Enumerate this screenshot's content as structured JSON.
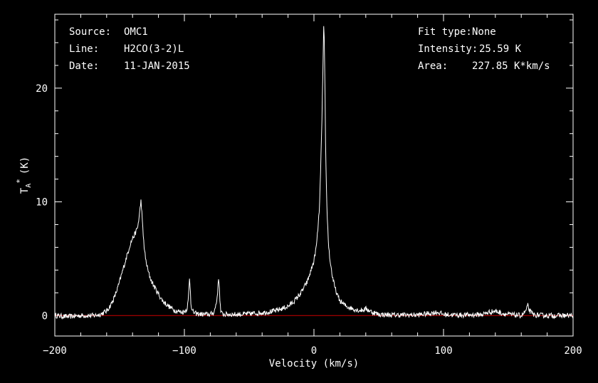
{
  "info_left": {
    "source_label": "Source:",
    "source_value": "OMC1",
    "line_label": "Line:",
    "line_value": "H2CO(3-2)L",
    "date_label": "Date:",
    "date_value": "11-JAN-2015"
  },
  "info_right": {
    "fit_label": "Fit type:",
    "fit_value": "None",
    "intensity_label": "Intensity:",
    "intensity_value": "25.59 K",
    "area_label": "Area:",
    "area_value": "227.85 K*km/s"
  },
  "colors": {
    "background": "#000000",
    "spectrum": "#ffffff",
    "baseline": "#cc0000",
    "frame": "#ffffff"
  },
  "chart_data": {
    "type": "line",
    "title": "",
    "xlabel": "Velocity (km/s)",
    "ylabel": "T",
    "ylabel_sub": "A",
    "ylabel_sup": "*",
    "ylabel_unit": "(K)",
    "xlim": [
      -200,
      200
    ],
    "ylim": [
      -1.8,
      26.5
    ],
    "xticks": [
      -200,
      -100,
      0,
      100,
      200
    ],
    "yticks": [
      0,
      10,
      20
    ],
    "baseline": 0,
    "grid": false,
    "series": [
      {
        "x": [
          -200,
          -190,
          -180,
          -170,
          -165,
          -160,
          -157,
          -154,
          -151,
          -148,
          -145,
          -142,
          -140,
          -138,
          -136,
          -135,
          -134,
          -133.5,
          -133,
          -132,
          -131,
          -130,
          -128,
          -126,
          -124,
          -122,
          -120,
          -118,
          -116,
          -114,
          -112,
          -110,
          -108,
          -106,
          -104,
          -102,
          -100,
          -98,
          -97,
          -96.5,
          -96,
          -95.5,
          -95,
          -94,
          -92,
          -90,
          -85,
          -80,
          -77,
          -75,
          -74,
          -73.5,
          -73,
          -72.5,
          -72,
          -71,
          -69,
          -65,
          -60,
          -50,
          -40,
          -30,
          -20,
          -15,
          -10,
          -5,
          0,
          2,
          4,
          5,
          6,
          7,
          7.5,
          8,
          8.5,
          9,
          10,
          11,
          12,
          14,
          16,
          18,
          20,
          25,
          30,
          35,
          38,
          40,
          45,
          50,
          60,
          70,
          80,
          90,
          95,
          100,
          110,
          120,
          130,
          135,
          140,
          145,
          150,
          160,
          162,
          164,
          165,
          166,
          168,
          170,
          180,
          190,
          200
        ],
        "y": [
          0,
          -0.1,
          0,
          0,
          0.1,
          0.4,
          0.9,
          1.6,
          2.6,
          3.8,
          5.0,
          6.2,
          6.8,
          7.2,
          7.8,
          8.6,
          9.6,
          10.1,
          9.4,
          7.4,
          6.0,
          5.0,
          3.9,
          3.2,
          2.7,
          2.3,
          1.9,
          1.5,
          1.2,
          1.0,
          0.8,
          0.65,
          0.5,
          0.4,
          0.35,
          0.3,
          0.35,
          0.6,
          1.3,
          2.4,
          3.3,
          2.5,
          1.2,
          0.4,
          0.2,
          0.15,
          0.1,
          0.1,
          0.3,
          1.3,
          2.6,
          3.4,
          2.5,
          1.2,
          0.4,
          0.15,
          0.1,
          0.1,
          0.1,
          0.15,
          0.25,
          0.4,
          0.8,
          1.3,
          2.0,
          3.0,
          4.8,
          6.2,
          9.0,
          12.0,
          16.5,
          22.0,
          25.5,
          24.0,
          20.0,
          14.5,
          9.5,
          6.8,
          5.2,
          3.6,
          2.5,
          1.8,
          1.3,
          0.8,
          0.6,
          0.45,
          0.5,
          0.6,
          0.3,
          0.1,
          0.05,
          0.05,
          0.05,
          0.2,
          0.3,
          0.1,
          0.05,
          0.05,
          0.1,
          0.3,
          0.4,
          0.2,
          0.1,
          0,
          0.2,
          0.5,
          0.9,
          0.5,
          0.2,
          0.05,
          0,
          0,
          0
        ]
      }
    ]
  }
}
